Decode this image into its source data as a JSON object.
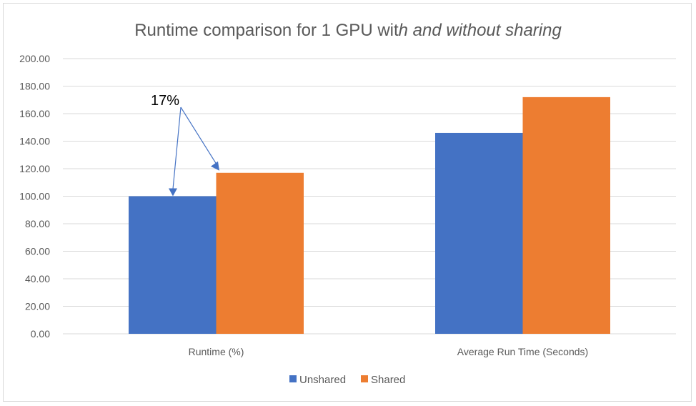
{
  "chart_data": {
    "type": "bar",
    "title": "Runtime comparison for 1 GPU with and without sharing",
    "title_parts": {
      "normal": "Runtime comparison for 1 GPU wit",
      "italic": "h and without sharing"
    },
    "xlabel": "",
    "ylabel": "",
    "categories": [
      "Runtime (%)",
      "Average Run Time (Seconds)"
    ],
    "series": [
      {
        "name": "Unshared",
        "color": "#4472C4",
        "values": [
          100,
          146
        ]
      },
      {
        "name": "Shared",
        "color": "#ED7D31",
        "values": [
          117,
          172
        ]
      }
    ],
    "ylim": [
      0,
      200
    ],
    "yticks": [
      "0.00",
      "20.00",
      "40.00",
      "60.00",
      "80.00",
      "100.00",
      "120.00",
      "140.00",
      "160.00",
      "180.00",
      "200.00"
    ],
    "grid": true,
    "legend": "bottom-center",
    "annotation": {
      "text": "17%",
      "color": "#4472C4"
    }
  }
}
